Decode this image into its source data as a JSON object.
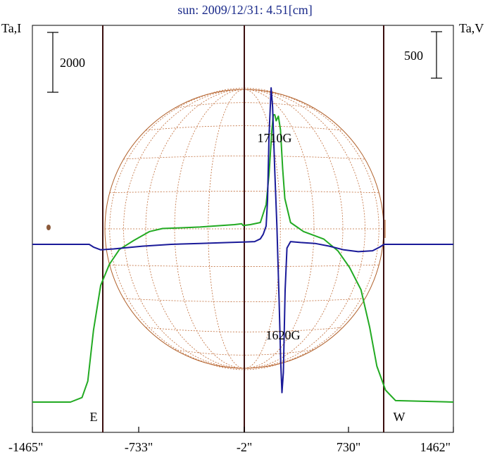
{
  "title": "sun: 2009/12/31: 4.51[cm]",
  "chart_data": {
    "type": "line",
    "left_axis_label": "Ta,I",
    "right_axis_label": "Ta,V",
    "xlim": [
      -1465,
      1462
    ],
    "x_tick_labels": [
      "-1465\"",
      "-733\"",
      "-2\"",
      "730\"",
      "1462\""
    ],
    "x_ticks": [
      -1465,
      -733,
      -2,
      730,
      1462
    ],
    "limb_markers": [
      {
        "label": "E",
        "x": -980
      },
      {
        "label": "W",
        "x": 970
      }
    ],
    "scale_bars": [
      {
        "axis": "left",
        "label": "2000",
        "value": 2000
      },
      {
        "axis": "right",
        "label": "500",
        "value": 500
      }
    ],
    "annotations": [
      {
        "text": "1710G",
        "x": 210,
        "y": 1710
      },
      {
        "text": "1620G",
        "x": 270,
        "y": -1620
      }
    ],
    "series": [
      {
        "color": "#22aa22",
        "axis": "left",
        "points": [
          [
            -1465,
            0
          ],
          [
            -1200,
            0
          ],
          [
            -1120,
            150
          ],
          [
            -1080,
            700
          ],
          [
            -1040,
            2400
          ],
          [
            -990,
            3900
          ],
          [
            -930,
            4600
          ],
          [
            -860,
            5100
          ],
          [
            -760,
            5400
          ],
          [
            -650,
            5700
          ],
          [
            -560,
            5800
          ],
          [
            -440,
            5820
          ],
          [
            -300,
            5850
          ],
          [
            -150,
            5900
          ],
          [
            -60,
            5930
          ],
          [
            -10,
            5960
          ],
          [
            0,
            5900
          ],
          [
            50,
            5930
          ],
          [
            120,
            6000
          ],
          [
            160,
            6600
          ],
          [
            180,
            7600
          ],
          [
            200,
            9100
          ],
          [
            210,
            9600
          ],
          [
            220,
            9600
          ],
          [
            230,
            9400
          ],
          [
            245,
            9550
          ],
          [
            260,
            9100
          ],
          [
            275,
            7800
          ],
          [
            290,
            6800
          ],
          [
            330,
            6000
          ],
          [
            420,
            5700
          ],
          [
            560,
            5450
          ],
          [
            660,
            5050
          ],
          [
            740,
            4500
          ],
          [
            820,
            3750
          ],
          [
            880,
            2500
          ],
          [
            930,
            1200
          ],
          [
            990,
            400
          ],
          [
            1060,
            50
          ],
          [
            1462,
            0
          ]
        ]
      },
      {
        "color": "#1a1a99",
        "axis": "right",
        "points": [
          [
            -1465,
            0
          ],
          [
            -1070,
            0
          ],
          [
            -1040,
            -30
          ],
          [
            -990,
            -60
          ],
          [
            -900,
            -50
          ],
          [
            -700,
            -20
          ],
          [
            -500,
            0
          ],
          [
            -300,
            10
          ],
          [
            -100,
            20
          ],
          [
            0,
            25
          ],
          [
            80,
            30
          ],
          [
            120,
            60
          ],
          [
            140,
            110
          ],
          [
            160,
            200
          ],
          [
            170,
            480
          ],
          [
            180,
            1180
          ],
          [
            195,
            1710
          ],
          [
            205,
            1500
          ],
          [
            220,
            800
          ],
          [
            235,
            200
          ],
          [
            250,
            -600
          ],
          [
            262,
            -1300
          ],
          [
            270,
            -1620
          ],
          [
            280,
            -1400
          ],
          [
            292,
            -500
          ],
          [
            305,
            -40
          ],
          [
            330,
            30
          ],
          [
            400,
            20
          ],
          [
            500,
            10
          ],
          [
            600,
            -20
          ],
          [
            700,
            -60
          ],
          [
            800,
            -80
          ],
          [
            900,
            -70
          ],
          [
            950,
            -30
          ],
          [
            980,
            0
          ],
          [
            1462,
            0
          ]
        ]
      }
    ]
  }
}
